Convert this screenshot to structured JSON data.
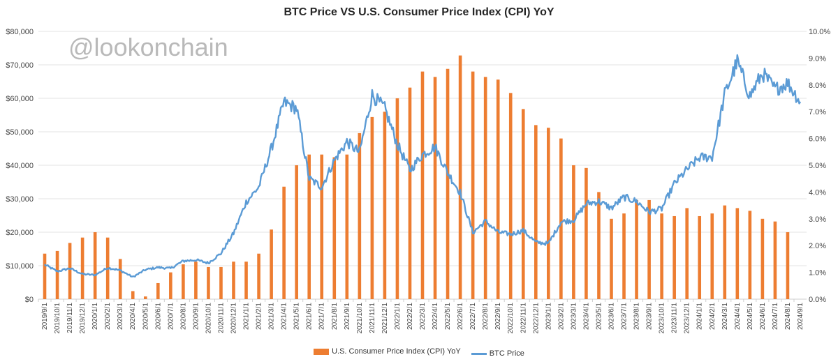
{
  "watermark": "@lookonchain",
  "chart_data": {
    "type": "bar+line",
    "title": "BTC Price VS U.S. Consumer Price Index (CPI) YoY",
    "left_axis": {
      "range": [
        0,
        80000
      ],
      "ticks": [
        "$0",
        "$10,000",
        "$20,000",
        "$30,000",
        "$40,000",
        "$50,000",
        "$60,000",
        "$70,000",
        "$80,000"
      ]
    },
    "right_axis": {
      "range": [
        0,
        10
      ],
      "ticks": [
        "0.0%",
        "1.0%",
        "2.0%",
        "3.0%",
        "4.0%",
        "5.0%",
        "6.0%",
        "7.0%",
        "8.0%",
        "9.0%",
        "10.0%"
      ]
    },
    "months": [
      "2019/9/1",
      "2019/10/1",
      "2019/11/1",
      "2019/12/1",
      "2020/1/1",
      "2020/2/1",
      "2020/3/1",
      "2020/4/1",
      "2020/5/1",
      "2020/6/1",
      "2020/7/1",
      "2020/8/1",
      "2020/9/1",
      "2020/10/1",
      "2020/11/1",
      "2020/12/1",
      "2021/1/1",
      "2021/2/1",
      "2021/3/1",
      "2021/4/1",
      "2021/5/1",
      "2021/6/1",
      "2021/7/1",
      "2021/8/1",
      "2021/9/1",
      "2021/10/1",
      "2021/11/1",
      "2021/12/1",
      "2022/1/1",
      "2022/2/1",
      "2022/3/1",
      "2022/4/1",
      "2022/5/1",
      "2022/6/1",
      "2022/7/1",
      "2022/8/1",
      "2022/9/1",
      "2022/10/1",
      "2022/11/1",
      "2022/12/1",
      "2023/1/1",
      "2023/2/1",
      "2023/3/1",
      "2023/4/1",
      "2023/5/1",
      "2023/6/1",
      "2023/7/1",
      "2023/8/1",
      "2023/9/1",
      "2023/10/1",
      "2023/11/1",
      "2023/12/1",
      "2024/1/1",
      "2024/2/1",
      "2024/3/1",
      "2024/4/1",
      "2024/5/1",
      "2024/6/1",
      "2024/7/1",
      "2024/8/1",
      "2024/9/1"
    ],
    "series": [
      {
        "name": "U.S. Consumer Price Index (CPI) YoY",
        "type": "bar",
        "axis": "right",
        "color": "#ed7d31",
        "values": [
          1.7,
          1.8,
          2.1,
          2.3,
          2.5,
          2.3,
          1.5,
          0.3,
          0.1,
          0.6,
          1.0,
          1.3,
          1.4,
          1.2,
          1.2,
          1.4,
          1.4,
          1.7,
          2.6,
          4.2,
          5.0,
          5.4,
          5.4,
          5.3,
          5.4,
          6.2,
          6.8,
          7.0,
          7.5,
          7.9,
          8.5,
          8.3,
          8.6,
          9.1,
          8.5,
          8.3,
          8.2,
          7.7,
          7.1,
          6.5,
          6.4,
          6.0,
          5.0,
          4.9,
          4.0,
          3.0,
          3.2,
          3.7,
          3.7,
          3.2,
          3.1,
          3.4,
          3.1,
          3.2,
          3.5,
          3.4,
          3.3,
          3.0,
          2.9,
          2.5
        ]
      },
      {
        "name": "BTC Price",
        "type": "line",
        "axis": "left",
        "color": "#5b9bd5",
        "values": [
          10300,
          8300,
          9200,
          7500,
          7200,
          9400,
          8600,
          6600,
          8800,
          9500,
          9200,
          11400,
          11700,
          10800,
          13700,
          19700,
          29000,
          33500,
          45000,
          58800,
          57000,
          36000,
          33500,
          41500,
          47000,
          43800,
          61000,
          57000,
          46300,
          38500,
          43200,
          45500,
          37800,
          31800,
          19900,
          23300,
          20000,
          19400,
          20500,
          17000,
          16600,
          23100,
          23600,
          28500,
          29200,
          27200,
          30500,
          29200,
          26000,
          27000,
          34500,
          38700,
          42300,
          42500,
          61200,
          71000,
          60700,
          67500,
          62700,
          64600,
          59000
        ]
      }
    ]
  },
  "legend": {
    "cpi_label": "U.S. Consumer Price Index (CPI) YoY",
    "btc_label": "BTC Price"
  }
}
